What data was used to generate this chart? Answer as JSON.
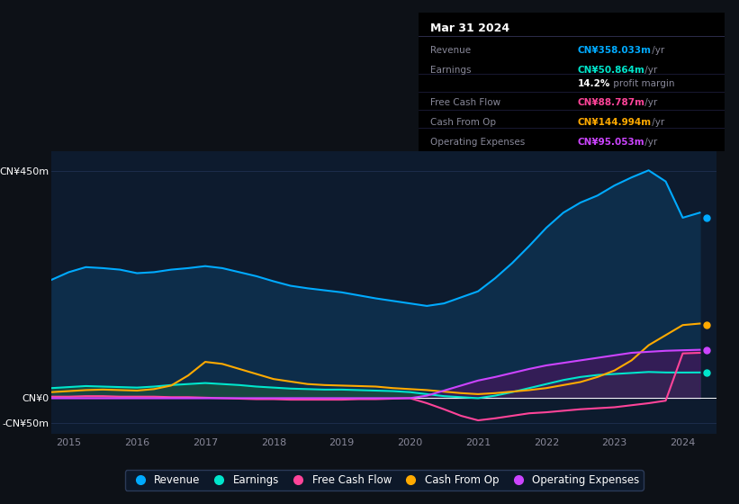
{
  "background_color": "#0d1117",
  "plot_bg_color": "#0d1b2e",
  "grid_color": "#1e3050",
  "years": [
    2014.75,
    2015.0,
    2015.25,
    2015.5,
    2015.75,
    2016.0,
    2016.25,
    2016.5,
    2016.75,
    2017.0,
    2017.25,
    2017.5,
    2017.75,
    2018.0,
    2018.25,
    2018.5,
    2018.75,
    2019.0,
    2019.25,
    2019.5,
    2019.75,
    2020.0,
    2020.25,
    2020.5,
    2020.75,
    2021.0,
    2021.25,
    2021.5,
    2021.75,
    2022.0,
    2022.25,
    2022.5,
    2022.75,
    2023.0,
    2023.25,
    2023.5,
    2023.75,
    2024.0,
    2024.25
  ],
  "revenue": [
    235,
    250,
    260,
    258,
    255,
    248,
    250,
    255,
    258,
    262,
    258,
    250,
    242,
    232,
    223,
    218,
    214,
    210,
    204,
    198,
    193,
    188,
    183,
    188,
    200,
    212,
    238,
    268,
    302,
    338,
    368,
    388,
    402,
    422,
    438,
    452,
    430,
    358,
    368
  ],
  "earnings": [
    20,
    22,
    24,
    23,
    22,
    21,
    23,
    26,
    28,
    30,
    28,
    26,
    23,
    21,
    19,
    18,
    17,
    17,
    16,
    15,
    14,
    12,
    8,
    4,
    2,
    0,
    5,
    12,
    20,
    28,
    36,
    42,
    46,
    48,
    50,
    52,
    51,
    50.864,
    51
  ],
  "free_cash_flow": [
    3,
    3,
    4,
    4,
    3,
    3,
    3,
    2,
    2,
    1,
    0,
    -1,
    -2,
    -2,
    -3,
    -3,
    -3,
    -3,
    -2,
    -2,
    -1,
    0,
    -10,
    -22,
    -35,
    -44,
    -40,
    -35,
    -30,
    -28,
    -25,
    -22,
    -20,
    -18,
    -14,
    -10,
    -5,
    88.787,
    90
  ],
  "cash_from_op": [
    12,
    14,
    16,
    17,
    16,
    15,
    18,
    25,
    45,
    72,
    68,
    58,
    48,
    38,
    33,
    28,
    26,
    25,
    24,
    23,
    20,
    18,
    16,
    13,
    10,
    8,
    10,
    13,
    16,
    20,
    26,
    32,
    42,
    55,
    75,
    105,
    125,
    144.994,
    148
  ],
  "operating_expenses": [
    0,
    0,
    0,
    0,
    0,
    0,
    0,
    0,
    0,
    0,
    0,
    0,
    0,
    0,
    0,
    0,
    0,
    0,
    0,
    0,
    0,
    0,
    5,
    15,
    25,
    35,
    42,
    50,
    58,
    65,
    70,
    75,
    80,
    85,
    90,
    92,
    94,
    95.053,
    96
  ],
  "revenue_color": "#00aaff",
  "earnings_color": "#00e5cc",
  "free_cash_flow_color": "#ff4499",
  "cash_from_op_color": "#ffaa00",
  "operating_expenses_color": "#cc44ff",
  "revenue_fill": "#0d2d4a",
  "earnings_fill": "#1a4a40",
  "opex_fill": "#3d1a5a",
  "ylim": [
    -70,
    490
  ],
  "yticks": [
    -50,
    0,
    450
  ],
  "ytick_labels": [
    "-CN¥50m",
    "CN¥0",
    "CN¥450m"
  ],
  "xticks": [
    2015,
    2016,
    2017,
    2018,
    2019,
    2020,
    2021,
    2022,
    2023,
    2024
  ],
  "tooltip_title": "Mar 31 2024",
  "tooltip_rows": [
    {
      "label": "Revenue",
      "value": "CN¥358.033m",
      "suffix": " /yr",
      "color": "#00aaff"
    },
    {
      "label": "Earnings",
      "value": "CN¥50.864m",
      "suffix": " /yr",
      "color": "#00e5cc"
    },
    {
      "label": "",
      "value": "14.2%",
      "suffix": " profit margin",
      "color": "#ffffff"
    },
    {
      "label": "Free Cash Flow",
      "value": "CN¥88.787m",
      "suffix": " /yr",
      "color": "#ff4499"
    },
    {
      "label": "Cash From Op",
      "value": "CN¥144.994m",
      "suffix": " /yr",
      "color": "#ffaa00"
    },
    {
      "label": "Operating Expenses",
      "value": "CN¥95.053m",
      "suffix": " /yr",
      "color": "#cc44ff"
    }
  ],
  "legend_items": [
    "Revenue",
    "Earnings",
    "Free Cash Flow",
    "Cash From Op",
    "Operating Expenses"
  ],
  "legend_colors": [
    "#00aaff",
    "#00e5cc",
    "#ff4499",
    "#ffaa00",
    "#cc44ff"
  ]
}
